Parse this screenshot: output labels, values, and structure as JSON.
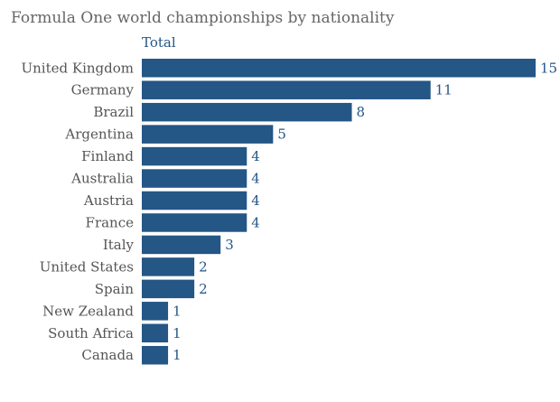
{
  "chart_data": {
    "type": "bar",
    "orientation": "horizontal",
    "title": "Formula One world championships by nationality",
    "series": [
      {
        "name": "Total",
        "values": [
          15,
          11,
          8,
          5,
          4,
          4,
          4,
          4,
          3,
          2,
          2,
          1,
          1,
          1
        ]
      }
    ],
    "categories": [
      "United Kingdom",
      "Germany",
      "Brazil",
      "Argentina",
      "Finland",
      "Australia",
      "Austria",
      "France",
      "Italy",
      "United States",
      "Spain",
      "New Zealand",
      "South Africa",
      "Canada"
    ],
    "xlim": [
      0,
      15
    ],
    "grid": false,
    "bar_color": "#245686"
  }
}
